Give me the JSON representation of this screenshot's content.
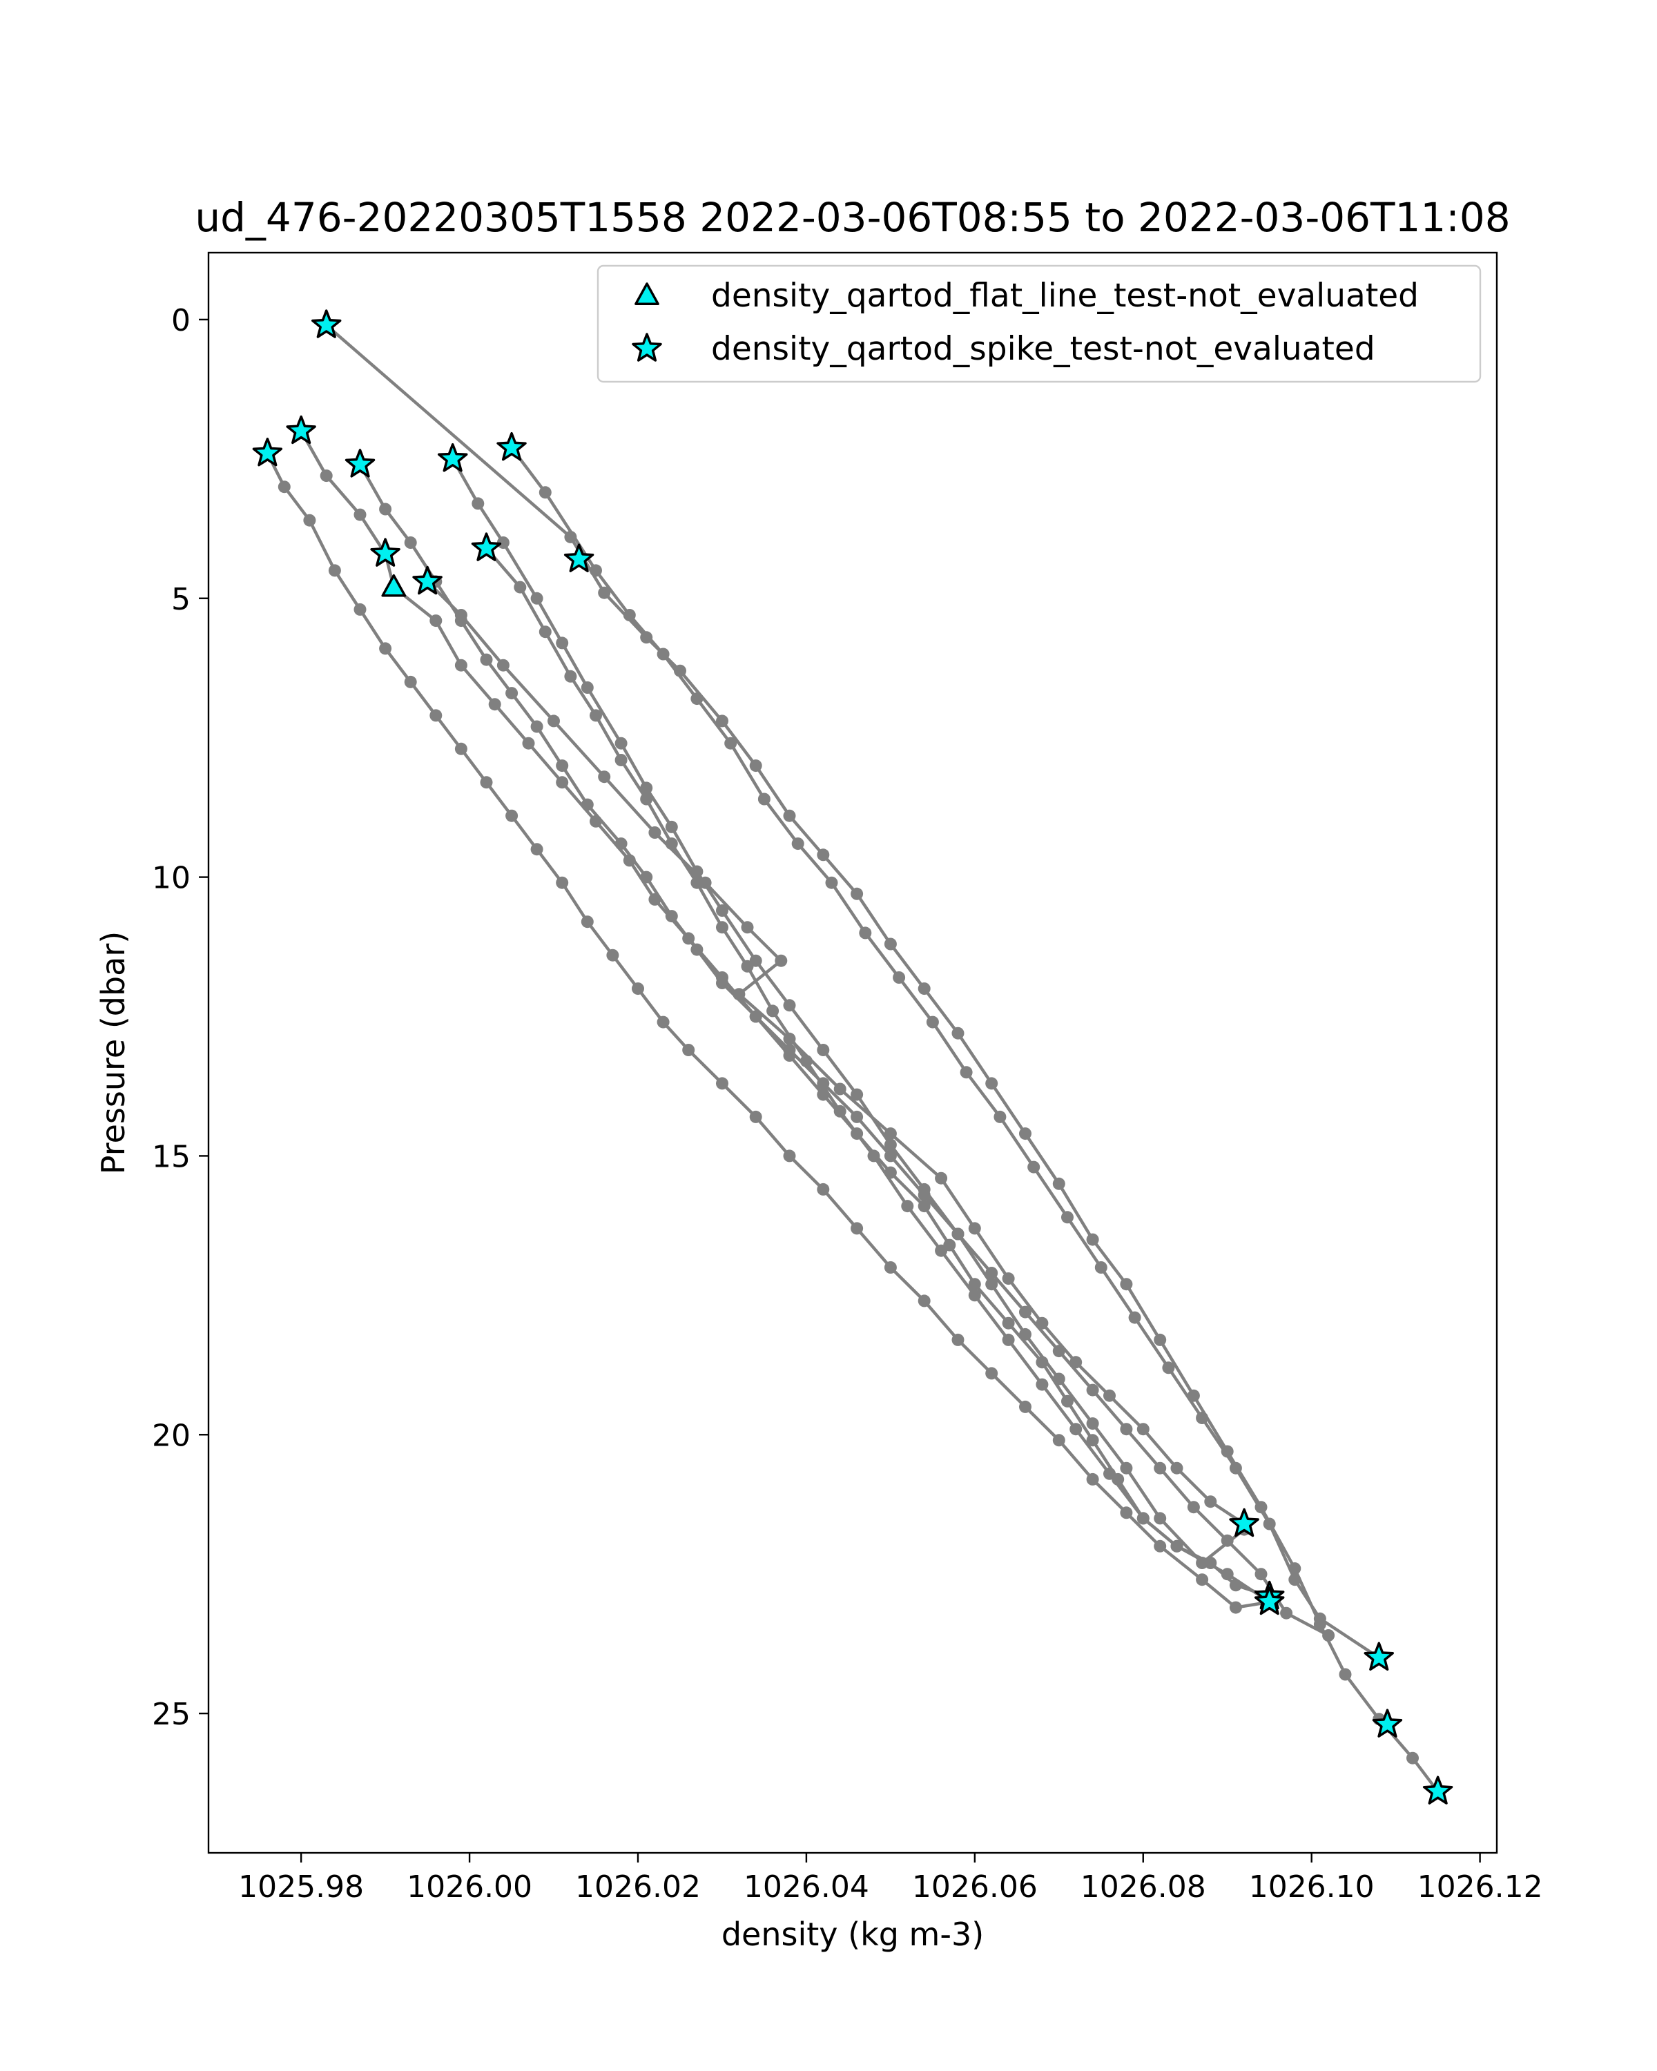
{
  "chart_data": {
    "type": "line",
    "title": "ud_476-20220305T1558 2022-03-06T08:55 to 2022-03-06T11:08",
    "xlabel": "density (kg m-3)",
    "ylabel": "Pressure (dbar)",
    "xlim": [
      1025.969,
      1026.122
    ],
    "ylim": [
      27.5,
      -1.2
    ],
    "y_inverted": true,
    "grid": false,
    "legend_position": "upper-right",
    "x_ticks": [
      {
        "value": 1025.98,
        "label": "1025.98"
      },
      {
        "value": 1026.0,
        "label": "1026.00"
      },
      {
        "value": 1026.02,
        "label": "1026.02"
      },
      {
        "value": 1026.04,
        "label": "1026.04"
      },
      {
        "value": 1026.06,
        "label": "1026.06"
      },
      {
        "value": 1026.08,
        "label": "1026.08"
      },
      {
        "value": 1026.1,
        "label": "1026.10"
      },
      {
        "value": 1026.12,
        "label": "1026.12"
      }
    ],
    "y_ticks": [
      {
        "value": 0,
        "label": "0"
      },
      {
        "value": 5,
        "label": "5"
      },
      {
        "value": 10,
        "label": "10"
      },
      {
        "value": 15,
        "label": "15"
      },
      {
        "value": 20,
        "label": "20"
      },
      {
        "value": 25,
        "label": "25"
      }
    ],
    "profile_color": "#808080",
    "profiles": [
      {
        "points": [
          [
            1025.983,
            0.1
          ],
          [
            1026.012,
            3.9
          ],
          [
            1026.016,
            4.9
          ],
          [
            1026.021,
            5.7
          ],
          [
            1026.025,
            6.3
          ],
          [
            1026.03,
            7.2
          ],
          [
            1026.034,
            8.0
          ],
          [
            1026.038,
            8.9
          ],
          [
            1026.042,
            9.6
          ],
          [
            1026.046,
            10.3
          ],
          [
            1026.05,
            11.2
          ],
          [
            1026.054,
            12.0
          ],
          [
            1026.058,
            12.8
          ],
          [
            1026.062,
            13.7
          ],
          [
            1026.066,
            14.6
          ],
          [
            1026.07,
            15.5
          ],
          [
            1026.074,
            16.5
          ],
          [
            1026.078,
            17.3
          ],
          [
            1026.082,
            18.3
          ],
          [
            1026.086,
            19.3
          ],
          [
            1026.09,
            20.3
          ],
          [
            1026.094,
            21.3
          ],
          [
            1026.098,
            22.4
          ],
          [
            1026.101,
            23.4
          ],
          [
            1026.104,
            24.3
          ],
          [
            1026.108,
            25.1
          ],
          [
            1026.112,
            25.8
          ],
          [
            1026.115,
            26.4
          ]
        ]
      },
      {
        "points": [
          [
            1026.005,
            2.3
          ],
          [
            1026.009,
            3.1
          ],
          [
            1026.015,
            4.5
          ],
          [
            1026.019,
            5.3
          ],
          [
            1026.023,
            6.0
          ],
          [
            1026.027,
            6.8
          ],
          [
            1026.031,
            7.6
          ],
          [
            1026.035,
            8.6
          ],
          [
            1026.039,
            9.4
          ],
          [
            1026.043,
            10.1
          ],
          [
            1026.047,
            11.0
          ],
          [
            1026.051,
            11.8
          ],
          [
            1026.055,
            12.6
          ],
          [
            1026.059,
            13.5
          ],
          [
            1026.063,
            14.3
          ],
          [
            1026.067,
            15.2
          ],
          [
            1026.071,
            16.1
          ],
          [
            1026.075,
            17.0
          ],
          [
            1026.079,
            17.9
          ],
          [
            1026.083,
            18.8
          ],
          [
            1026.087,
            19.7
          ],
          [
            1026.091,
            20.6
          ],
          [
            1026.095,
            21.6
          ],
          [
            1026.098,
            22.6
          ],
          [
            1026.101,
            23.3
          ],
          [
            1026.108,
            24.0
          ]
        ]
      },
      {
        "points": [
          [
            1025.998,
            2.5
          ],
          [
            1026.001,
            3.3
          ],
          [
            1026.004,
            4.0
          ],
          [
            1026.008,
            5.0
          ],
          [
            1026.011,
            5.8
          ],
          [
            1026.014,
            6.6
          ],
          [
            1026.018,
            7.6
          ],
          [
            1026.021,
            8.4
          ],
          [
            1026.024,
            9.1
          ],
          [
            1026.027,
            9.9
          ],
          [
            1026.03,
            10.6
          ],
          [
            1026.034,
            11.5
          ],
          [
            1026.038,
            12.3
          ],
          [
            1026.042,
            13.1
          ],
          [
            1026.046,
            13.9
          ],
          [
            1026.05,
            14.8
          ],
          [
            1026.054,
            15.6
          ],
          [
            1026.058,
            16.4
          ],
          [
            1026.062,
            17.3
          ],
          [
            1026.066,
            18.2
          ],
          [
            1026.07,
            19.0
          ],
          [
            1026.074,
            19.8
          ],
          [
            1026.078,
            20.6
          ],
          [
            1026.082,
            21.5
          ],
          [
            1026.087,
            22.3
          ],
          [
            1026.092,
            21.7
          ]
        ]
      },
      {
        "points": [
          [
            1026.002,
            4.1
          ],
          [
            1026.006,
            4.8
          ],
          [
            1026.009,
            5.6
          ],
          [
            1026.012,
            6.4
          ],
          [
            1026.015,
            7.1
          ],
          [
            1026.018,
            7.9
          ],
          [
            1026.021,
            8.6
          ],
          [
            1026.024,
            9.4
          ],
          [
            1026.027,
            10.1
          ],
          [
            1026.03,
            10.9
          ],
          [
            1026.033,
            11.6
          ],
          [
            1026.036,
            12.4
          ],
          [
            1026.04,
            13.3
          ],
          [
            1026.044,
            14.2
          ],
          [
            1026.048,
            15.0
          ],
          [
            1026.052,
            15.9
          ],
          [
            1026.056,
            16.7
          ],
          [
            1026.06,
            17.5
          ],
          [
            1026.064,
            18.3
          ],
          [
            1026.068,
            19.1
          ],
          [
            1026.072,
            19.9
          ],
          [
            1026.076,
            20.7
          ],
          [
            1026.08,
            21.5
          ],
          [
            1026.084,
            22.0
          ],
          [
            1026.09,
            22.5
          ],
          [
            1026.095,
            23.0
          ]
        ]
      },
      {
        "points": [
          [
            1025.976,
            2.4
          ],
          [
            1025.978,
            3.0
          ],
          [
            1025.981,
            3.6
          ],
          [
            1025.984,
            4.5
          ],
          [
            1025.987,
            5.2
          ],
          [
            1025.99,
            5.9
          ],
          [
            1025.993,
            6.5
          ],
          [
            1025.996,
            7.1
          ],
          [
            1025.999,
            7.7
          ],
          [
            1026.002,
            8.3
          ],
          [
            1026.005,
            8.9
          ],
          [
            1026.008,
            9.5
          ],
          [
            1026.011,
            10.1
          ],
          [
            1026.014,
            10.8
          ],
          [
            1026.017,
            11.4
          ],
          [
            1026.02,
            12.0
          ],
          [
            1026.023,
            12.6
          ],
          [
            1026.026,
            13.1
          ],
          [
            1026.03,
            13.7
          ],
          [
            1026.034,
            14.3
          ],
          [
            1026.038,
            15.0
          ],
          [
            1026.042,
            15.6
          ],
          [
            1026.046,
            16.3
          ],
          [
            1026.05,
            17.0
          ],
          [
            1026.054,
            17.6
          ],
          [
            1026.058,
            18.3
          ],
          [
            1026.062,
            18.9
          ],
          [
            1026.066,
            19.5
          ],
          [
            1026.07,
            20.1
          ],
          [
            1026.074,
            20.8
          ],
          [
            1026.078,
            21.4
          ],
          [
            1026.082,
            22.0
          ],
          [
            1026.087,
            22.6
          ],
          [
            1026.091,
            23.1
          ],
          [
            1026.095,
            23.0
          ]
        ]
      },
      {
        "points": [
          [
            1025.98,
            2.0
          ],
          [
            1025.983,
            2.8
          ],
          [
            1025.987,
            3.5
          ],
          [
            1025.99,
            4.2
          ],
          [
            1025.991,
            4.8
          ],
          [
            1025.996,
            5.4
          ],
          [
            1025.999,
            6.2
          ],
          [
            1026.003,
            6.9
          ],
          [
            1026.007,
            7.6
          ],
          [
            1026.011,
            8.3
          ],
          [
            1026.015,
            9.0
          ],
          [
            1026.019,
            9.7
          ],
          [
            1026.022,
            10.4
          ],
          [
            1026.026,
            11.1
          ],
          [
            1026.03,
            11.8
          ],
          [
            1026.034,
            12.5
          ],
          [
            1026.038,
            13.2
          ],
          [
            1026.042,
            13.9
          ],
          [
            1026.046,
            14.6
          ],
          [
            1026.05,
            15.3
          ],
          [
            1026.054,
            15.9
          ],
          [
            1026.057,
            16.6
          ],
          [
            1026.06,
            17.3
          ],
          [
            1026.064,
            18.0
          ],
          [
            1026.068,
            18.7
          ],
          [
            1026.071,
            19.4
          ],
          [
            1026.074,
            20.1
          ],
          [
            1026.077,
            20.8
          ],
          [
            1026.08,
            21.5
          ],
          [
            1026.084,
            22.0
          ],
          [
            1026.088,
            22.3
          ],
          [
            1026.091,
            22.7
          ],
          [
            1026.095,
            22.9
          ]
        ]
      },
      {
        "points": [
          [
            1025.987,
            2.6
          ],
          [
            1025.99,
            3.4
          ],
          [
            1025.993,
            4.0
          ],
          [
            1025.996,
            4.7
          ],
          [
            1025.999,
            5.4
          ],
          [
            1026.002,
            6.1
          ],
          [
            1026.005,
            6.7
          ],
          [
            1026.008,
            7.3
          ],
          [
            1026.011,
            8.0
          ],
          [
            1026.014,
            8.7
          ],
          [
            1026.018,
            9.4
          ],
          [
            1026.021,
            10.0
          ],
          [
            1026.024,
            10.7
          ],
          [
            1026.027,
            11.3
          ],
          [
            1026.03,
            11.9
          ],
          [
            1026.034,
            12.5
          ],
          [
            1026.038,
            13.1
          ],
          [
            1026.042,
            13.7
          ],
          [
            1026.046,
            14.3
          ],
          [
            1026.05,
            15.0
          ],
          [
            1026.054,
            15.7
          ],
          [
            1026.058,
            16.4
          ],
          [
            1026.062,
            17.1
          ],
          [
            1026.066,
            17.8
          ],
          [
            1026.07,
            18.5
          ],
          [
            1026.074,
            19.2
          ],
          [
            1026.078,
            19.9
          ],
          [
            1026.082,
            20.6
          ],
          [
            1026.086,
            21.3
          ],
          [
            1026.09,
            21.9
          ],
          [
            1026.094,
            22.5
          ],
          [
            1026.097,
            23.2
          ],
          [
            1026.102,
            23.6
          ]
        ]
      },
      {
        "points": [
          [
            1025.995,
            4.7
          ],
          [
            1025.999,
            5.3
          ],
          [
            1026.004,
            6.2
          ],
          [
            1026.01,
            7.2
          ],
          [
            1026.016,
            8.2
          ],
          [
            1026.022,
            9.2
          ],
          [
            1026.028,
            10.1
          ],
          [
            1026.033,
            10.9
          ],
          [
            1026.037,
            11.5
          ],
          [
            1026.032,
            12.1
          ],
          [
            1026.038,
            12.9
          ],
          [
            1026.044,
            13.8
          ],
          [
            1026.05,
            14.6
          ],
          [
            1026.056,
            15.4
          ],
          [
            1026.06,
            16.3
          ],
          [
            1026.064,
            17.2
          ],
          [
            1026.068,
            18.0
          ],
          [
            1026.072,
            18.7
          ],
          [
            1026.076,
            19.3
          ],
          [
            1026.08,
            19.9
          ],
          [
            1026.084,
            20.6
          ],
          [
            1026.088,
            21.2
          ],
          [
            1026.092,
            21.6
          ]
        ]
      }
    ],
    "series": [
      {
        "name": "density_qartod_flat_line_test-not_evaluated",
        "marker": "triangle",
        "color": "#00f0f0",
        "points": [
          [
            1025.991,
            4.8
          ]
        ]
      },
      {
        "name": "density_qartod_spike_test-not_evaluated",
        "marker": "star",
        "color": "#00f0f0",
        "points": [
          [
            1025.983,
            0.1
          ],
          [
            1025.98,
            2.0
          ],
          [
            1025.976,
            2.4
          ],
          [
            1025.987,
            2.6
          ],
          [
            1025.998,
            2.5
          ],
          [
            1026.005,
            2.3
          ],
          [
            1025.99,
            4.2
          ],
          [
            1026.002,
            4.1
          ],
          [
            1026.013,
            4.3
          ],
          [
            1025.995,
            4.7
          ],
          [
            1026.092,
            21.6
          ],
          [
            1026.095,
            22.9
          ],
          [
            1026.095,
            23.0
          ],
          [
            1026.108,
            24.0
          ],
          [
            1026.109,
            25.2
          ],
          [
            1026.115,
            26.4
          ]
        ]
      }
    ]
  }
}
